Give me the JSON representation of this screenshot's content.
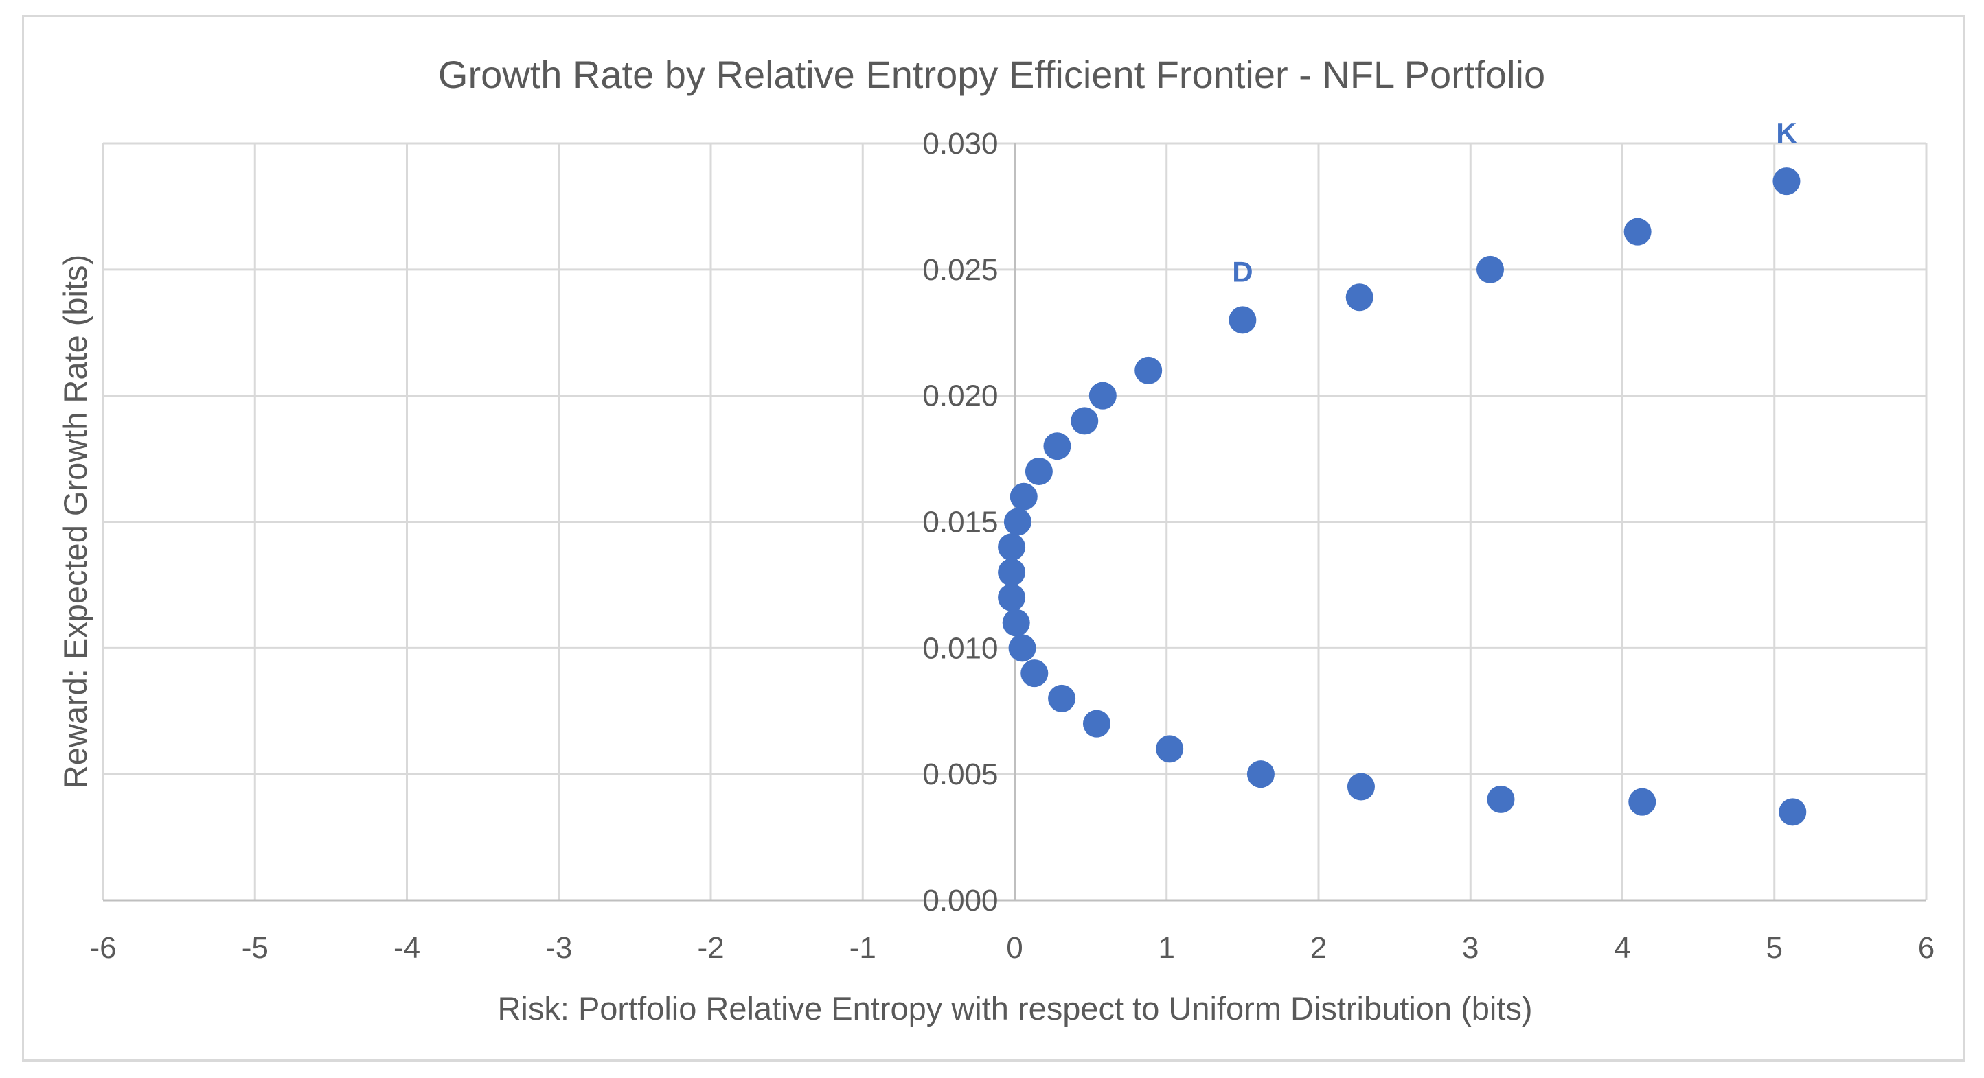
{
  "chart_data": {
    "type": "scatter",
    "title": "Growth Rate by Relative Entropy Efficient Frontier - NFL Portfolio",
    "xlabel": "Risk: Portfolio Relative Entropy with respect to Uniform Distribution (bits)",
    "ylabel": "Reward: Expected Growth Rate (bits)",
    "xlim": [
      -6,
      6
    ],
    "ylim": [
      0,
      0.03
    ],
    "x_ticks": [
      -6,
      -5,
      -4,
      -3,
      -2,
      -1,
      0,
      1,
      2,
      3,
      4,
      5,
      6
    ],
    "x_tick_labels": [
      "-6",
      "-5",
      "-4",
      "-3",
      "-2",
      "-1",
      "0",
      "1",
      "2",
      "3",
      "4",
      "5",
      "6"
    ],
    "y_ticks": [
      0,
      0.005,
      0.01,
      0.015,
      0.02,
      0.025,
      0.03
    ],
    "y_tick_labels": [
      "0.000",
      "0.005",
      "0.010",
      "0.015",
      "0.020",
      "0.025",
      "0.030"
    ],
    "grid": true,
    "marker_color": "#4472c4",
    "series": [
      {
        "name": "Efficient Frontier",
        "points": [
          {
            "x": 5.08,
            "y": 0.0285,
            "label": "K"
          },
          {
            "x": 4.1,
            "y": 0.0265
          },
          {
            "x": 3.13,
            "y": 0.025
          },
          {
            "x": 2.27,
            "y": 0.0239
          },
          {
            "x": 1.5,
            "y": 0.023,
            "label": "D"
          },
          {
            "x": 0.88,
            "y": 0.021
          },
          {
            "x": 0.58,
            "y": 0.02
          },
          {
            "x": 0.46,
            "y": 0.019
          },
          {
            "x": 0.28,
            "y": 0.018
          },
          {
            "x": 0.16,
            "y": 0.017
          },
          {
            "x": 0.06,
            "y": 0.016
          },
          {
            "x": 0.02,
            "y": 0.015
          },
          {
            "x": -0.02,
            "y": 0.014
          },
          {
            "x": -0.02,
            "y": 0.013
          },
          {
            "x": -0.02,
            "y": 0.012
          },
          {
            "x": 0.01,
            "y": 0.011
          },
          {
            "x": 0.05,
            "y": 0.01
          },
          {
            "x": 0.13,
            "y": 0.009
          },
          {
            "x": 0.31,
            "y": 0.008
          },
          {
            "x": 0.54,
            "y": 0.007
          },
          {
            "x": 1.02,
            "y": 0.006
          },
          {
            "x": 1.62,
            "y": 0.005
          },
          {
            "x": 2.28,
            "y": 0.0045
          },
          {
            "x": 3.2,
            "y": 0.004
          },
          {
            "x": 4.13,
            "y": 0.0039
          },
          {
            "x": 5.12,
            "y": 0.0035
          }
        ]
      }
    ]
  }
}
